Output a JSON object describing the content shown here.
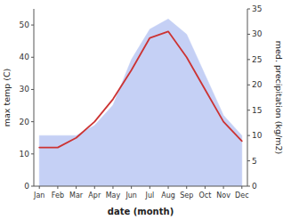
{
  "chart_data": {
    "type": "line",
    "categories": [
      "Jan",
      "Feb",
      "Mar",
      "Apr",
      "May",
      "Jun",
      "Jul",
      "Aug",
      "Sep",
      "Oct",
      "Nov",
      "Dec"
    ],
    "xlabel": "date (month)",
    "ylabel": "max temp (C)",
    "y2label": "med. precipitation (kg/m2)",
    "ylim": [
      0,
      55
    ],
    "yticks": [
      0,
      10,
      20,
      30,
      40,
      50
    ],
    "y2lim": [
      0,
      35
    ],
    "y2ticks": [
      0,
      5,
      10,
      15,
      20,
      25,
      30,
      35
    ],
    "grid": false,
    "series": [
      {
        "type": "area",
        "axis": "y2",
        "color": "#c5d0f5",
        "values": [
          10,
          10,
          10,
          12,
          16,
          25,
          31,
          33,
          30,
          22,
          14,
          10
        ]
      },
      {
        "type": "line",
        "color": "#cc3333",
        "values": [
          12,
          12,
          15,
          20,
          27,
          36,
          46,
          48,
          40,
          30,
          20,
          14
        ]
      }
    ]
  }
}
